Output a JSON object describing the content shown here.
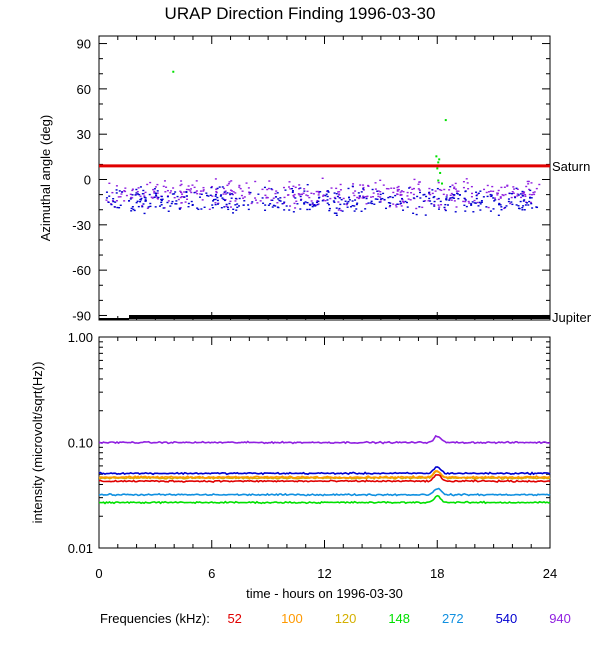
{
  "title": "URAP Direction Finding  1996-03-30",
  "legend": {
    "label": "Frequencies (kHz):",
    "items": [
      {
        "text": "52",
        "color": "#e00000"
      },
      {
        "text": "100",
        "color": "#ff9900"
      },
      {
        "text": "120",
        "color": "#d4b000"
      },
      {
        "text": "148",
        "color": "#00e000"
      },
      {
        "text": "272",
        "color": "#1090e0"
      },
      {
        "text": "540",
        "color": "#0000d0"
      },
      {
        "text": "940",
        "color": "#9020e0"
      }
    ]
  },
  "chart_data": [
    {
      "type": "scatter",
      "ylabel": "Azimuthal angle (deg)",
      "xlim": [
        0,
        24
      ],
      "ylim": [
        -93,
        95
      ],
      "yticks": [
        "90",
        "60",
        "30",
        "0",
        "-30",
        "-60",
        "-90"
      ],
      "reference_lines": [
        {
          "name": "Saturn",
          "y": 9,
          "color": "#e00000"
        },
        {
          "name": "Jupiter",
          "y": -91,
          "color": "#000000"
        }
      ],
      "series": [
        {
          "color": "#9020e0",
          "y_mean": -9,
          "y_spread": 8
        },
        {
          "color": "#0000d0",
          "y_mean": -14,
          "y_spread": 8
        },
        {
          "color": "#00e000",
          "points": [
            [
              17.9,
              16
            ],
            [
              18.0,
              12
            ],
            [
              18.1,
              5
            ],
            [
              18.0,
              0
            ],
            [
              18.2,
              -2
            ],
            [
              17.95,
              8
            ],
            [
              18.05,
              14
            ],
            [
              18.4,
              40
            ],
            [
              3.9,
              72
            ]
          ]
        }
      ]
    },
    {
      "type": "line",
      "ylabel": "intensity (microvolt/sqrt(Hz))",
      "xlabel": "time - hours on 1996-03-30",
      "xlim": [
        0,
        24
      ],
      "ylim": [
        0.01,
        1.0
      ],
      "yscale": "log",
      "xticks": [
        "0",
        "6",
        "12",
        "18",
        "24"
      ],
      "yticks": [
        "1.00",
        "0.10",
        "0.01"
      ],
      "series": [
        {
          "color": "#9020e0",
          "level": 0.1
        },
        {
          "color": "#0000d0",
          "level": 0.051
        },
        {
          "color": "#d4b000",
          "level": 0.046
        },
        {
          "color": "#ff9900",
          "level": 0.047
        },
        {
          "color": "#e00000",
          "level": 0.043
        },
        {
          "color": "#1090e0",
          "level": 0.032
        },
        {
          "color": "#00e000",
          "level": 0.027
        }
      ]
    }
  ]
}
